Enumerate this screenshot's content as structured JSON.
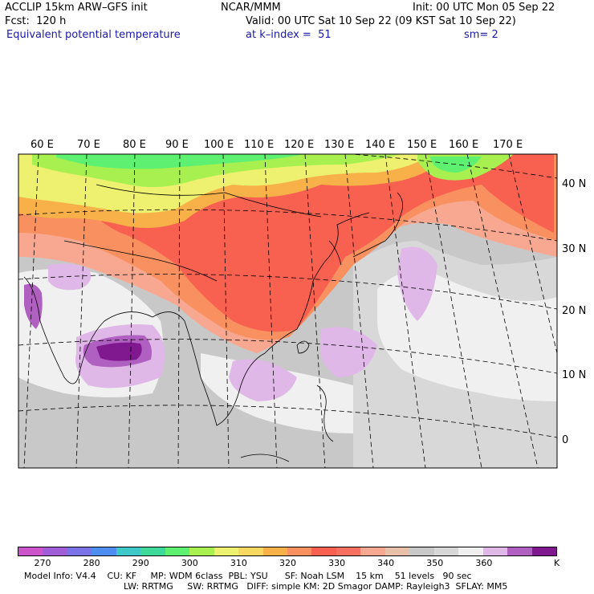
{
  "header": {
    "model": "ACCLIP 15km ARW–GFS init",
    "center": "NCAR/MMM",
    "init": "Init: 00 UTC Mon 05 Sep 22",
    "fcst": "Fcst:  120 h",
    "valid": "Valid: 00 UTC Sat 10 Sep 22 (09 KST Sat 10 Sep 22)",
    "field": "Equivalent potential temperature",
    "level": "at k–index =  51",
    "smooth": "sm= 2"
  },
  "map": {
    "lon_labels": [
      "60 E",
      "70 E",
      "80 E",
      "90 E",
      "100 E",
      "110 E",
      "120 E",
      "130 E",
      "140 E",
      "150 E",
      "160 E",
      "170 E"
    ],
    "lat_labels": [
      "40 N",
      "30 N",
      "20 N",
      "10 N",
      "0"
    ]
  },
  "colorbar": {
    "colors": [
      "#cc55cc",
      "#a05ed8",
      "#7a72e6",
      "#4e8ef0",
      "#3ec8c8",
      "#3ed89a",
      "#5ef070",
      "#a8f050",
      "#eef070",
      "#f8d860",
      "#f8b048",
      "#f89060",
      "#f86050",
      "#f87060",
      "#f8a890",
      "#e8c0a8",
      "#c8c8c8",
      "#d8d8d8",
      "#f0f0f0",
      "#e0b8e8",
      "#b060c0",
      "#801890"
    ],
    "labels": [
      "270",
      "280",
      "290",
      "300",
      "310",
      "320",
      "330",
      "340",
      "350",
      "360",
      "K"
    ]
  },
  "footer": {
    "line1": "Model Info: V4.4    CU: KF     MP: WDM 6class  PBL: YSU      SF: Noah LSM    15 km    51 levels   90 sec",
    "line2": "LW: RRTMG     SW: RRTMG   DIFF: simple KM: 2D Smagor DAMP: Rayleigh3  SFLAY: MM5"
  }
}
